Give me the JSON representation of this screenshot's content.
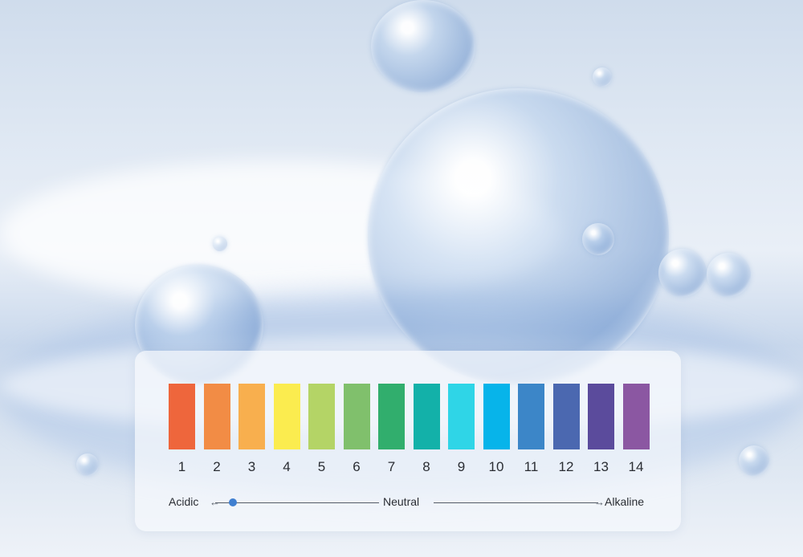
{
  "scale": {
    "items": [
      {
        "label": "1",
        "color": "#ee663c"
      },
      {
        "label": "2",
        "color": "#f28c45"
      },
      {
        "label": "3",
        "color": "#f8af4e"
      },
      {
        "label": "4",
        "color": "#fbec4f"
      },
      {
        "label": "5",
        "color": "#b4d466"
      },
      {
        "label": "6",
        "color": "#80c06c"
      },
      {
        "label": "7",
        "color": "#31ae6d"
      },
      {
        "label": "8",
        "color": "#13b1a9"
      },
      {
        "label": "9",
        "color": "#2fd5e7"
      },
      {
        "label": "10",
        "color": "#07b4ea"
      },
      {
        "label": "11",
        "color": "#3c86c8"
      },
      {
        "label": "12",
        "color": "#4b68b0"
      },
      {
        "label": "13",
        "color": "#5b4b9c"
      },
      {
        "label": "14",
        "color": "#8b57a2"
      }
    ],
    "acidic_label": "Acidic",
    "neutral_label": "Neutral",
    "alkaline_label": "Alkaline",
    "marker_color": "#3f7fd0"
  }
}
